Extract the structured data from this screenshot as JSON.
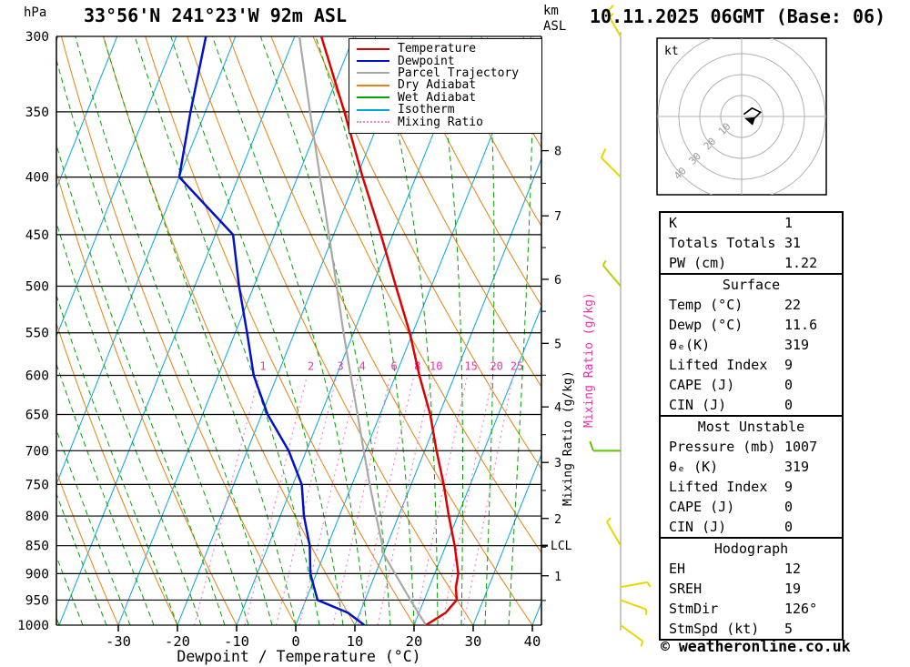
{
  "header": {
    "pressure_unit": "hPa",
    "title": "33°56'N 241°23'W 92m ASL",
    "altitude_unit_top": "km",
    "altitude_unit_bottom": "ASL",
    "date": "10.11.2025 06GMT (Base: 06)"
  },
  "footer": {
    "xlabel": "Dewpoint / Temperature (°C)",
    "copyright": "© weatheronline.co.uk"
  },
  "legend": [
    {
      "label": "Temperature",
      "color": "#dd0000",
      "style": "solid"
    },
    {
      "label": "Dewpoint",
      "color": "#0011cc",
      "style": "solid"
    },
    {
      "label": "Parcel Trajectory",
      "color": "#a9a9a9",
      "style": "solid"
    },
    {
      "label": "Dry Adiabat",
      "color": "#e8820c",
      "style": "solid"
    },
    {
      "label": "Wet Adiabat",
      "color": "#00a400",
      "style": "solid"
    },
    {
      "label": "Isotherm",
      "color": "#00a8dc",
      "style": "solid"
    },
    {
      "label": "Mixing Ratio",
      "color": "#ff7fd4",
      "style": "dotted"
    }
  ],
  "chart_data": {
    "type": "skewt-log-p",
    "xlabel": "Dewpoint / Temperature (°C)",
    "pressure_axis_unit": "hPa",
    "altitude_axis_unit": "km ASL",
    "pressure_range": [
      300,
      1000
    ],
    "pressure_ticks": [
      300,
      350,
      400,
      450,
      500,
      550,
      600,
      650,
      700,
      750,
      800,
      850,
      900,
      950,
      1000
    ],
    "temp_ticks": [
      -30,
      -20,
      -10,
      0,
      10,
      20,
      30,
      40
    ],
    "isotherm_step_c": 10,
    "dry_adiabat_step_k": 10,
    "wet_adiabat_step_k": 4,
    "mixing_ratio_lines": [
      1,
      2,
      3,
      4,
      6,
      8,
      10,
      15,
      20,
      25
    ],
    "mixing_ratio_axis_label": "Mixing Ratio (g/kg)",
    "lcl": {
      "label": "LCL",
      "p": 850
    },
    "km_ticks": [
      {
        "km": 1,
        "p": 904
      },
      {
        "km": 2,
        "p": 804
      },
      {
        "km": 3,
        "p": 717
      },
      {
        "km": 4,
        "p": 640
      },
      {
        "km": 5,
        "p": 562
      },
      {
        "km": 6,
        "p": 493
      },
      {
        "km": 7,
        "p": 433
      },
      {
        "km": 8,
        "p": 379
      }
    ],
    "temperature_profile": [
      {
        "p": 1000,
        "t": 22
      },
      {
        "p": 975,
        "t": 24.5
      },
      {
        "p": 950,
        "t": 25.5
      },
      {
        "p": 925,
        "t": 24.5
      },
      {
        "p": 900,
        "t": 24
      },
      {
        "p": 850,
        "t": 21.5
      },
      {
        "p": 800,
        "t": 18.5
      },
      {
        "p": 750,
        "t": 15.5
      },
      {
        "p": 700,
        "t": 12
      },
      {
        "p": 650,
        "t": 8.5
      },
      {
        "p": 600,
        "t": 4
      },
      {
        "p": 550,
        "t": -0.5
      },
      {
        "p": 500,
        "t": -6
      },
      {
        "p": 450,
        "t": -12
      },
      {
        "p": 400,
        "t": -19
      },
      {
        "p": 350,
        "t": -26.5
      },
      {
        "p": 300,
        "t": -35.5
      }
    ],
    "dewpoint_profile": [
      {
        "p": 1000,
        "t": 11.6
      },
      {
        "p": 975,
        "t": 8
      },
      {
        "p": 950,
        "t": 2
      },
      {
        "p": 925,
        "t": 0.5
      },
      {
        "p": 900,
        "t": -1
      },
      {
        "p": 850,
        "t": -3
      },
      {
        "p": 800,
        "t": -6
      },
      {
        "p": 750,
        "t": -8.5
      },
      {
        "p": 700,
        "t": -13
      },
      {
        "p": 650,
        "t": -19
      },
      {
        "p": 600,
        "t": -24
      },
      {
        "p": 550,
        "t": -28
      },
      {
        "p": 500,
        "t": -32.5
      },
      {
        "p": 450,
        "t": -37
      },
      {
        "p": 400,
        "t": -50
      },
      {
        "p": 350,
        "t": -52.5
      },
      {
        "p": 300,
        "t": -55
      }
    ],
    "parcel_profile": [
      {
        "p": 1000,
        "t": 22
      },
      {
        "p": 950,
        "t": 17.7
      },
      {
        "p": 900,
        "t": 13.3
      },
      {
        "p": 860,
        "t": 9.6
      },
      {
        "p": 850,
        "t": 9.3
      },
      {
        "p": 800,
        "t": 6.2
      },
      {
        "p": 750,
        "t": 3
      },
      {
        "p": 700,
        "t": -0.3
      },
      {
        "p": 650,
        "t": -3.8
      },
      {
        "p": 600,
        "t": -7.6
      },
      {
        "p": 550,
        "t": -11.7
      },
      {
        "p": 500,
        "t": -16
      },
      {
        "p": 450,
        "t": -20.8
      },
      {
        "p": 400,
        "t": -26.2
      },
      {
        "p": 350,
        "t": -32.3
      },
      {
        "p": 300,
        "t": -39.2
      }
    ],
    "wind_barbs": [
      {
        "p": 300,
        "dir": 330,
        "spd": 15,
        "color": "#e8d800"
      },
      {
        "p": 400,
        "dir": 315,
        "spd": 10,
        "color": "#e8d800"
      },
      {
        "p": 500,
        "dir": 320,
        "spd": 5,
        "color": "#b9cf00"
      },
      {
        "p": 700,
        "dir": 270,
        "spd": 10,
        "color": "#62c400"
      },
      {
        "p": 850,
        "dir": 330,
        "spd": 5,
        "color": "#e8d800"
      },
      {
        "p": 925,
        "dir": 80,
        "spd": 5,
        "color": "#e8d800"
      },
      {
        "p": 950,
        "dir": 110,
        "spd": 5,
        "color": "#e8d800"
      },
      {
        "p": 1000,
        "dir": 126,
        "spd": 5,
        "color": "#e8d800"
      }
    ],
    "hodograph": {
      "unit": "kt",
      "rings": [
        10,
        20,
        30,
        40
      ],
      "trace_kt": [
        [
          1,
          1
        ],
        [
          5,
          4
        ],
        [
          9,
          2
        ],
        [
          5,
          -2
        ],
        [
          2,
          -1
        ]
      ]
    },
    "colors": {
      "temperature": "#dd0000",
      "dewpoint": "#0011cc",
      "parcel": "#a9a9a9",
      "dry_adiabat": "#e8820c",
      "wet_adiabat": "#00a400",
      "isotherm": "#00a8dc",
      "mixing_ratio": "#ff7fd4",
      "mixing_ratio_label": "#ee30b0",
      "grid": "#000000",
      "barb_axis": "#909090",
      "hodograph_grid": "#b0b0b0"
    }
  },
  "table": {
    "sections": [
      {
        "header": null,
        "rows": [
          [
            "K",
            "1"
          ],
          [
            "Totals Totals",
            "31"
          ],
          [
            "PW (cm)",
            "1.22"
          ]
        ]
      },
      {
        "header": "Surface",
        "rows": [
          [
            "Temp (°C)",
            "22"
          ],
          [
            "Dewp (°C)",
            "11.6"
          ],
          [
            "θₑ(K)",
            "319"
          ],
          [
            "Lifted Index",
            "9"
          ],
          [
            "CAPE (J)",
            "0"
          ],
          [
            "CIN (J)",
            "0"
          ]
        ]
      },
      {
        "header": "Most Unstable",
        "rows": [
          [
            "Pressure (mb)",
            "1007"
          ],
          [
            "θₑ (K)",
            "319"
          ],
          [
            "Lifted Index",
            "9"
          ],
          [
            "CAPE (J)",
            "0"
          ],
          [
            "CIN (J)",
            "0"
          ]
        ]
      },
      {
        "header": "Hodograph",
        "rows": [
          [
            "EH",
            "12"
          ],
          [
            "SREH",
            "19"
          ],
          [
            "StmDir",
            "126°"
          ],
          [
            "StmSpd (kt)",
            "5"
          ]
        ]
      }
    ]
  }
}
